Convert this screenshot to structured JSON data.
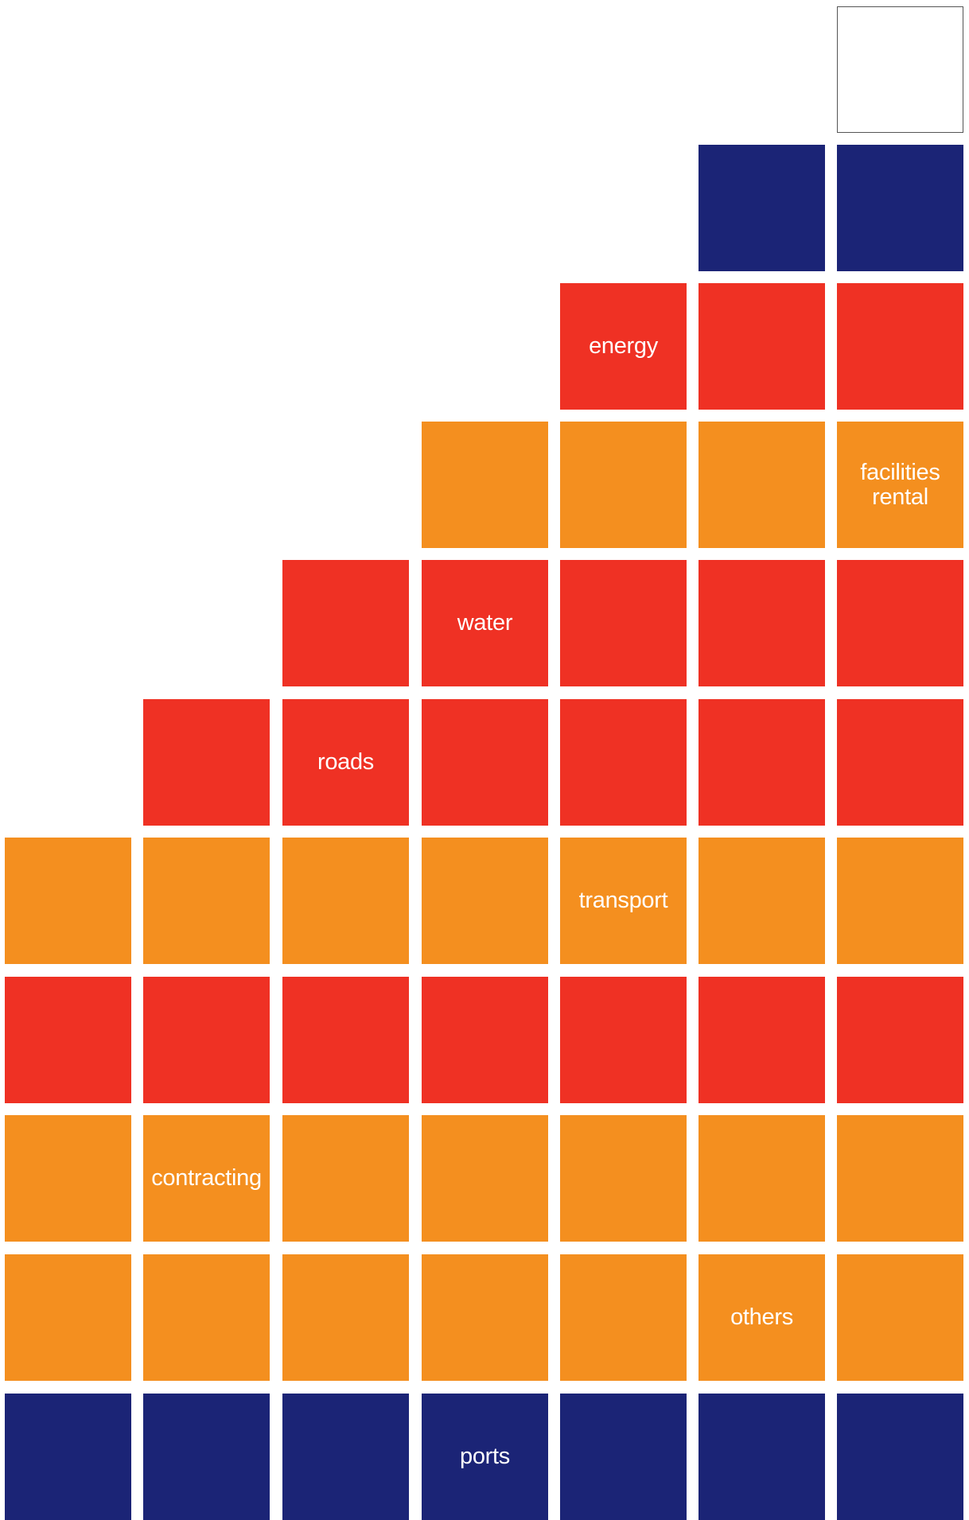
{
  "colors": {
    "orange": "#F48F1F",
    "red": "#EF3124",
    "navy": "#1B2476",
    "text": "#FFFFFF"
  },
  "rows": [
    [
      "",
      "",
      "",
      "",
      "",
      "",
      "empty"
    ],
    [
      "",
      "",
      "",
      "",
      "",
      "navy",
      "navy"
    ],
    [
      "",
      "",
      "",
      "",
      "red",
      "red",
      "red"
    ],
    [
      "",
      "",
      "",
      "orange",
      "orange",
      "orange",
      "orange"
    ],
    [
      "",
      "",
      "red",
      "red",
      "red",
      "red",
      "red"
    ],
    [
      "",
      "red",
      "red",
      "red",
      "red",
      "red",
      "red"
    ],
    [
      "orange",
      "orange",
      "orange",
      "orange",
      "orange",
      "orange",
      "orange"
    ],
    [
      "red",
      "red",
      "red",
      "red",
      "red",
      "red",
      "red"
    ],
    [
      "orange",
      "orange",
      "orange",
      "orange",
      "orange",
      "orange",
      "orange"
    ],
    [
      "orange",
      "orange",
      "orange",
      "orange",
      "orange",
      "orange",
      "orange"
    ],
    [
      "navy",
      "navy",
      "navy",
      "navy",
      "navy",
      "navy",
      "navy"
    ]
  ],
  "labels": {
    "energy": "energy",
    "facilities_rental": "facilities\nrental",
    "water": "water",
    "roads": "roads",
    "transport": "transport",
    "contracting": "contracting",
    "others": "others",
    "ports": "ports"
  }
}
